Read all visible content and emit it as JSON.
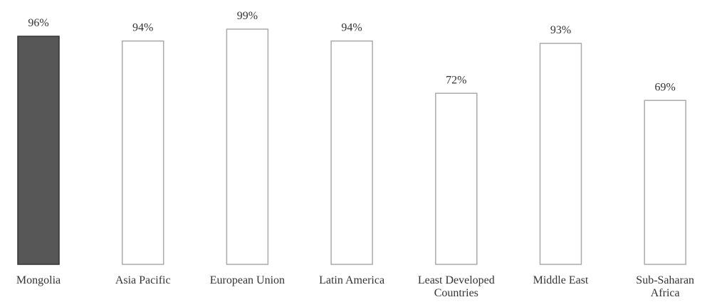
{
  "chart_data": {
    "type": "bar",
    "categories": [
      "Mongolia",
      "Asia Pacific",
      "European Union",
      "Latin America",
      "Least Developed Countries",
      "Middle East",
      "Sub-Saharan Africa"
    ],
    "values": [
      96,
      94,
      99,
      94,
      72,
      93,
      69
    ],
    "value_labels": [
      "96%",
      "94%",
      "99%",
      "94%",
      "72%",
      "93%",
      "69%"
    ],
    "colors": [
      "#575757",
      "#ffffff",
      "#ffffff",
      "#ffffff",
      "#ffffff",
      "#ffffff",
      "#ffffff"
    ]
  }
}
